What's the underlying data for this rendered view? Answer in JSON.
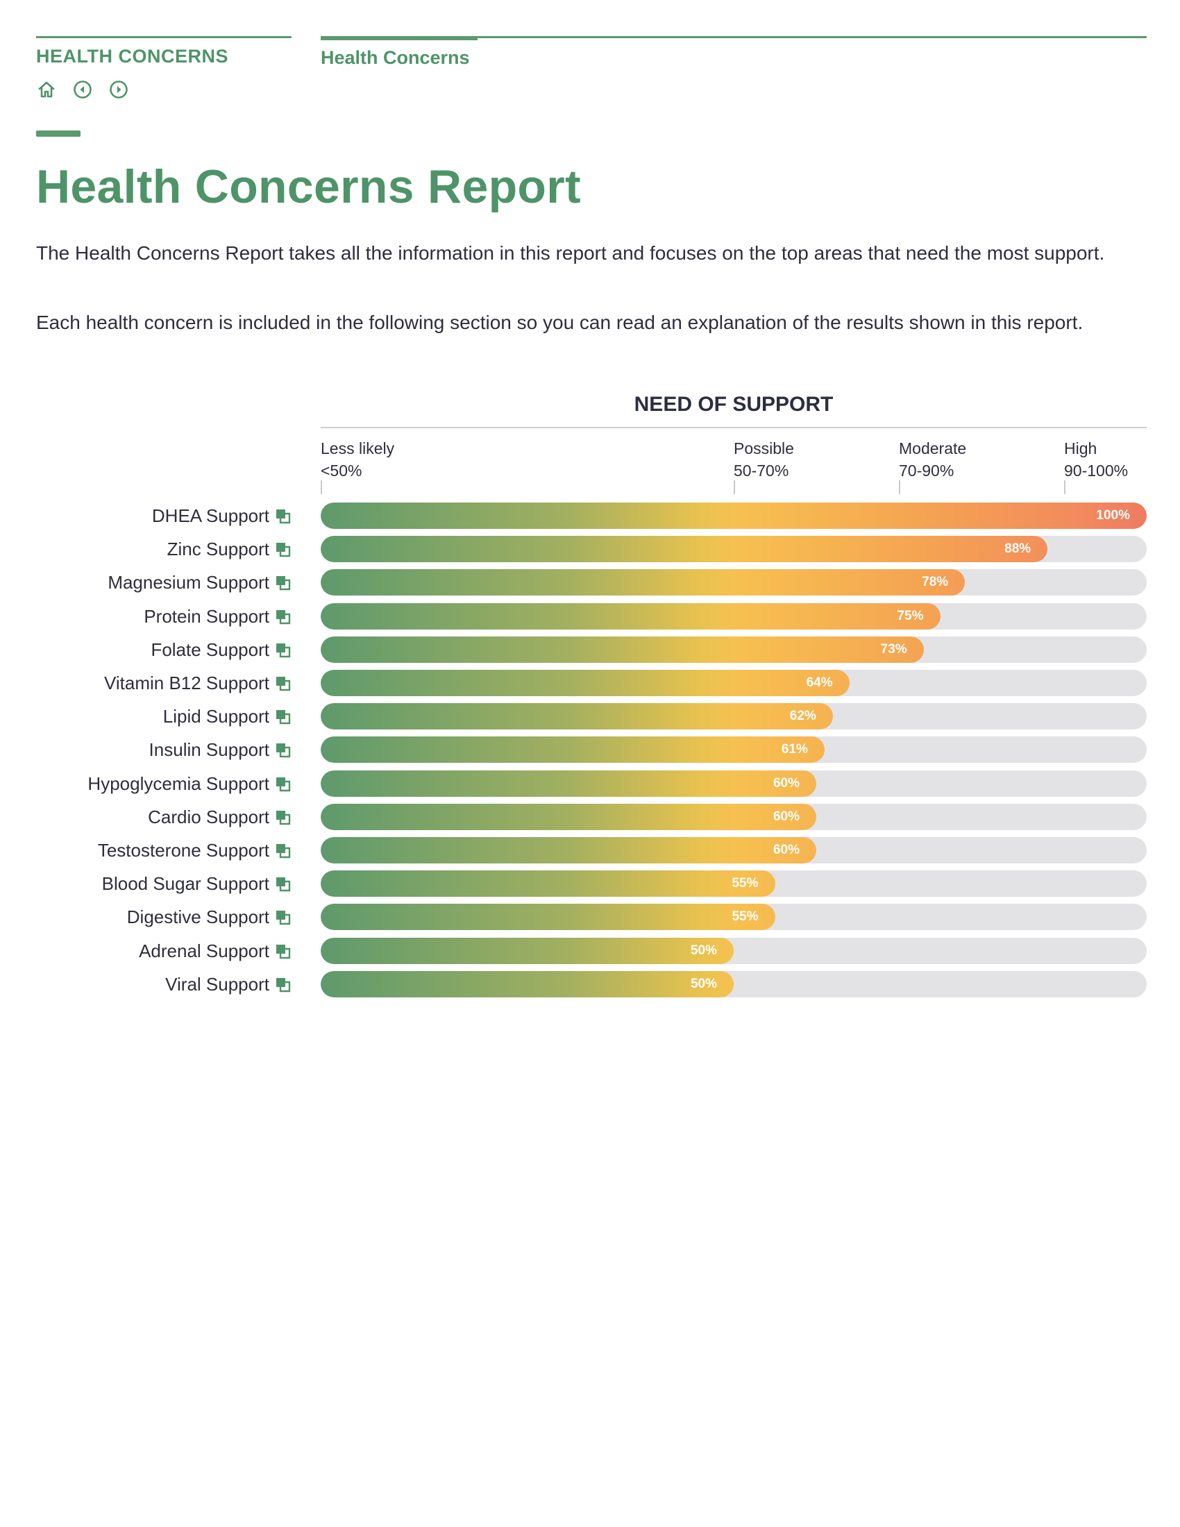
{
  "header": {
    "section_label": "HEALTH CONCERNS",
    "tab_label": "Health Concerns",
    "nav_icons": [
      "home-icon",
      "previous-icon",
      "next-icon"
    ]
  },
  "page": {
    "title": "Health Concerns Report",
    "paragraphs": [
      "The Health Concerns Report takes all the information in this report and focuses on the top areas that need the most support.",
      "Each health concern is included in the following section so you can read an explanation of the results shown in this report."
    ]
  },
  "colors": {
    "accent_green": "#4e9468",
    "bar_track": "#e3e3e5",
    "gradient_low": "#5e9a6c",
    "gradient_mid": "#f6c150",
    "gradient_high": "#ee7b61"
  },
  "chart_data": {
    "type": "bar",
    "orientation": "horizontal",
    "title": "NEED OF SUPPORT",
    "xlim": [
      0,
      100
    ],
    "scale": [
      {
        "name": "Less likely",
        "range": "<50%",
        "start": 0
      },
      {
        "name": "Possible",
        "range": "50-70%",
        "start": 50
      },
      {
        "name": "Moderate",
        "range": "70-90%",
        "start": 70
      },
      {
        "name": "High",
        "range": "90-100%",
        "start": 90
      }
    ],
    "row_icon": "open-link-icon",
    "categories": [
      "DHEA Support",
      "Zinc Support",
      "Magnesium Support",
      "Protein Support",
      "Folate Support",
      "Vitamin B12 Support",
      "Lipid Support",
      "Insulin Support",
      "Hypoglycemia Support",
      "Cardio Support",
      "Testosterone Support",
      "Blood Sugar Support",
      "Digestive Support",
      "Adrenal Support",
      "Viral Support"
    ],
    "values": [
      100,
      88,
      78,
      75,
      73,
      64,
      62,
      61,
      60,
      60,
      60,
      55,
      55,
      50,
      50
    ],
    "value_labels": [
      "100%",
      "88%",
      "78%",
      "75%",
      "73%",
      "64%",
      "62%",
      "61%",
      "60%",
      "60%",
      "60%",
      "55%",
      "55%",
      "50%",
      "50%"
    ]
  }
}
